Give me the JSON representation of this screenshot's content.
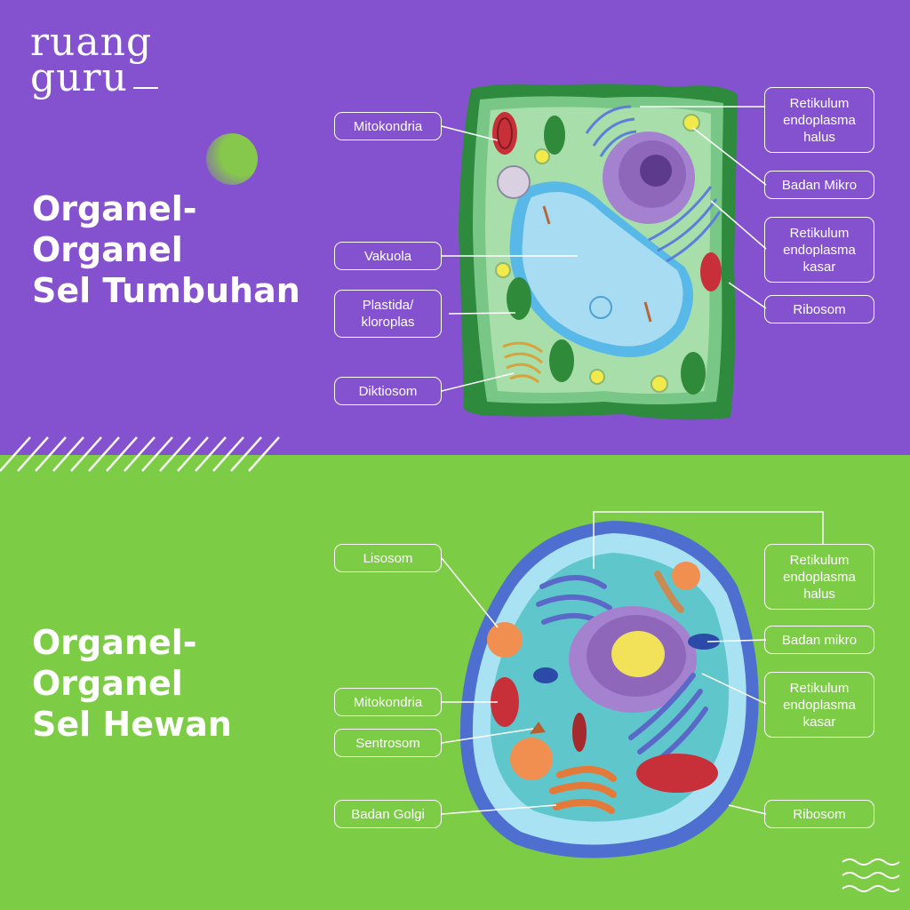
{
  "brand": {
    "logo_line1": "ruang",
    "logo_line2": "guru"
  },
  "colors": {
    "top_bg": "#8452cf",
    "bottom_bg": "#7ccc46",
    "text": "#ffffff"
  },
  "plant": {
    "title_line1": "Organel-",
    "title_line2": "Organel",
    "title_line3": "Sel Tumbuhan",
    "labels": {
      "mitokondria": "Mitokondria",
      "vakuola": "Vakuola",
      "plastida": "Plastida/\nkloroplas",
      "diktiosom": "Diktiosom",
      "re_halus": "Retikulum\nendoplasma\nhalus",
      "badan_mikro": "Badan Mikro",
      "re_kasar": "Retikulum\nendoplasma\nkasar",
      "ribosom": "Ribosom"
    }
  },
  "animal": {
    "title_line1": "Organel-",
    "title_line2": "Organel",
    "title_line3": "Sel Hewan",
    "labels": {
      "lisosom": "Lisosom",
      "mitokondria": "Mitokondria",
      "sentrosom": "Sentrosom",
      "badan_golgi": "Badan Golgi",
      "re_halus": "Retikulum\nendoplasma\nhalus",
      "badan_mikro": "Badan mikro",
      "re_kasar": "Retikulum\nendoplasma\nkasar",
      "ribosom": "Ribosom"
    }
  }
}
